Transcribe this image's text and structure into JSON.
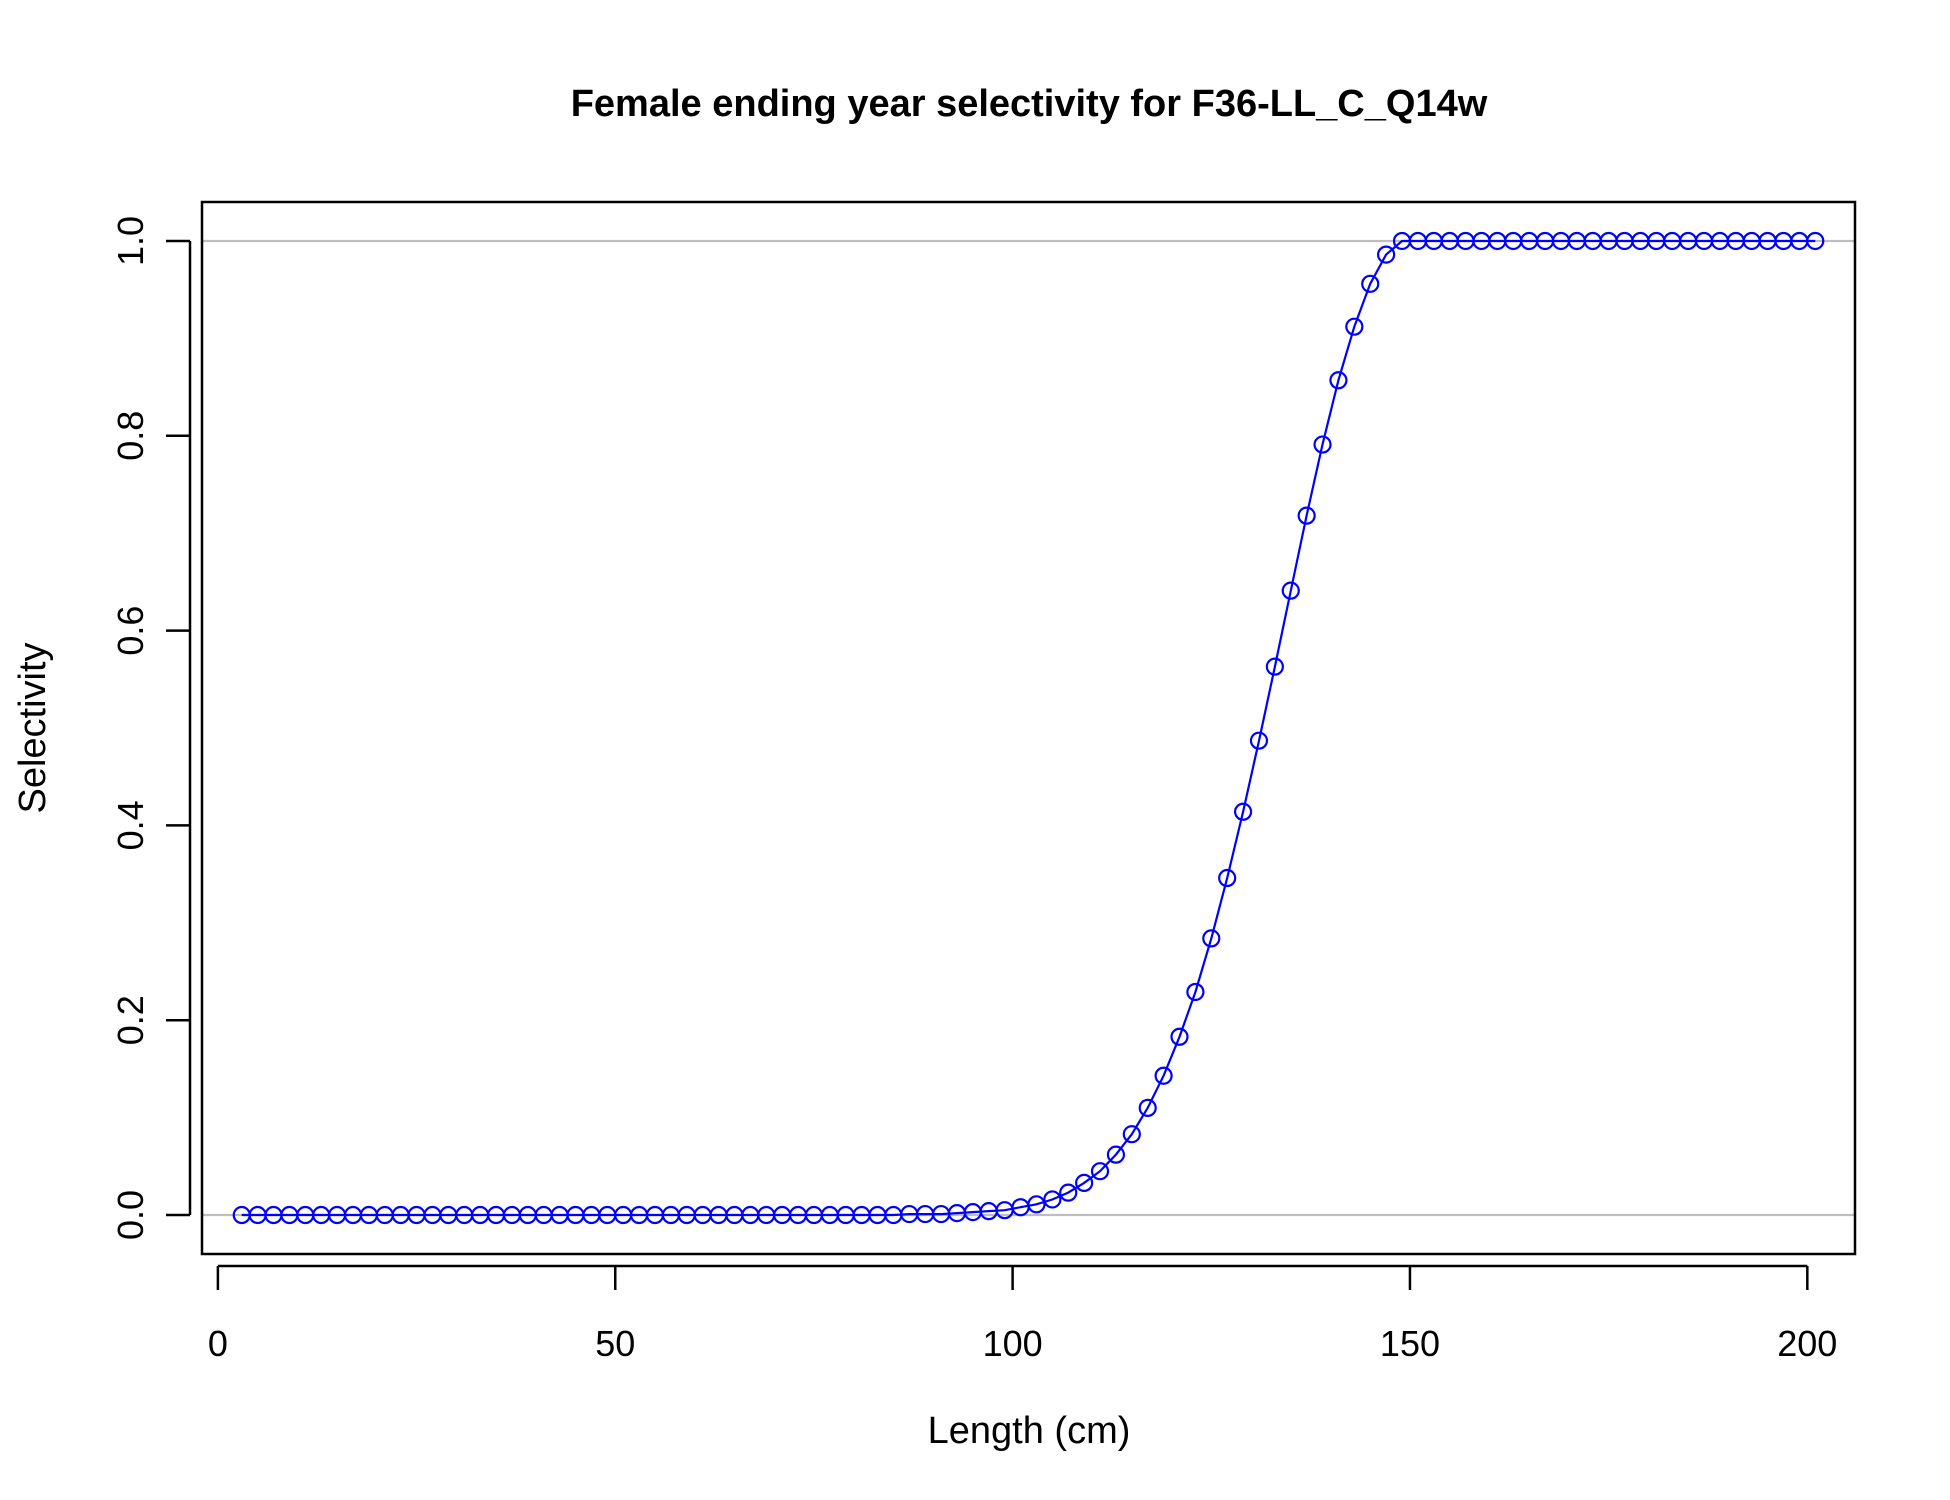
{
  "chart_data": {
    "type": "line",
    "title": "Female ending year selectivity for F36-LL_C_Q14w",
    "xlabel": "Length (cm)",
    "ylabel": "Selectivity",
    "xlim": [
      -2,
      206
    ],
    "ylim": [
      -0.04,
      1.04
    ],
    "xticks": [
      0,
      50,
      100,
      150,
      200
    ],
    "xtick_labels": [
      "0",
      "50",
      "100",
      "150",
      "200"
    ],
    "yticks": [
      0.0,
      0.2,
      0.4,
      0.6,
      0.8,
      1.0
    ],
    "ytick_labels": [
      "0.0",
      "0.2",
      "0.4",
      "0.6",
      "0.8",
      "1.0"
    ],
    "reference_lines": [
      0,
      1
    ],
    "grid": false,
    "legend": "none",
    "colors": {
      "series": "#0000ff",
      "reference": "#bebebe",
      "frame": "#000000"
    },
    "series": [
      {
        "marker": "open-circle",
        "line": true,
        "x": [
          3,
          5,
          7,
          9,
          11,
          13,
          15,
          17,
          19,
          21,
          23,
          25,
          27,
          29,
          31,
          33,
          35,
          37,
          39,
          41,
          43,
          45,
          47,
          49,
          51,
          53,
          55,
          57,
          59,
          61,
          63,
          65,
          67,
          69,
          71,
          73,
          75,
          77,
          79,
          81,
          83,
          85,
          87,
          89,
          91,
          93,
          95,
          97,
          99,
          101,
          103,
          105,
          107,
          109,
          111,
          113,
          115,
          117,
          119,
          121,
          123,
          125,
          127,
          129,
          131,
          133,
          135,
          137,
          139,
          141,
          143,
          145,
          147,
          149,
          151,
          153,
          155,
          157,
          159,
          161,
          163,
          165,
          167,
          169,
          171,
          173,
          175,
          177,
          179,
          181,
          183,
          185,
          187,
          189,
          191,
          193,
          195,
          197,
          199,
          201
        ],
        "y": [
          0,
          0,
          0,
          0,
          0,
          0,
          0,
          0,
          0,
          0,
          0,
          0,
          0,
          0,
          0,
          0,
          0,
          0,
          0,
          0,
          0,
          0,
          0,
          0,
          0,
          0,
          0,
          0,
          0,
          0,
          0,
          0,
          0,
          0,
          0,
          0,
          0,
          0,
          0,
          0,
          0,
          0,
          0.001,
          0.001,
          0.001,
          0.002,
          0.003,
          0.004,
          0.005,
          0.008,
          0.011,
          0.016,
          0.023,
          0.033,
          0.045,
          0.062,
          0.083,
          0.11,
          0.143,
          0.183,
          0.229,
          0.284,
          0.346,
          0.414,
          0.487,
          0.563,
          0.641,
          0.718,
          0.791,
          0.857,
          0.912,
          0.956,
          0.986,
          1.0,
          1.0,
          1.0,
          1.0,
          1.0,
          1.0,
          1.0,
          1.0,
          1.0,
          1.0,
          1.0,
          1.0,
          1.0,
          1.0,
          1.0,
          1.0,
          1.0,
          1.0,
          1.0,
          1.0,
          1.0,
          1.0,
          1.0,
          1.0,
          1.0,
          1.0,
          1.0
        ]
      }
    ]
  }
}
